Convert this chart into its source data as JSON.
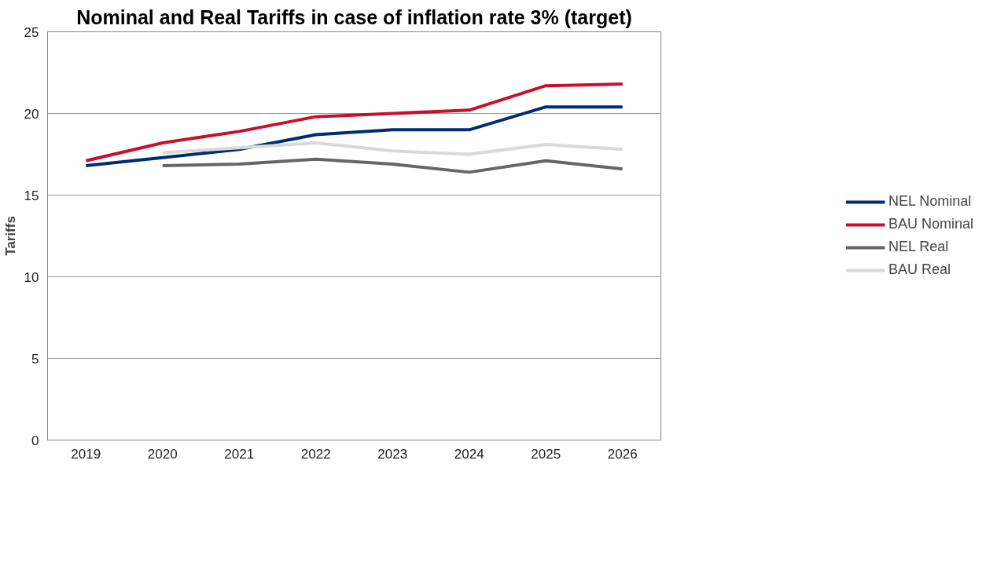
{
  "chart_data": {
    "type": "line",
    "title": "Nominal and Real Tariffs in case of inflation rate 3% (target)",
    "ylabel": "Tariffs",
    "categories": [
      "2019",
      "2020",
      "2021",
      "2022",
      "2023",
      "2024",
      "2025",
      "2026"
    ],
    "series": [
      {
        "name": "NEL Nominal",
        "color": "#002d72",
        "values": [
          16.8,
          17.3,
          17.8,
          18.7,
          19.0,
          19.0,
          20.4,
          20.4
        ]
      },
      {
        "name": "BAU Nominal",
        "color": "#c8102e",
        "values": [
          17.1,
          18.2,
          18.9,
          19.8,
          20.0,
          20.2,
          21.7,
          21.8
        ]
      },
      {
        "name": "NEL Real",
        "color": "#666666",
        "values": [
          null,
          16.8,
          16.9,
          17.2,
          16.9,
          16.4,
          17.1,
          16.6
        ]
      },
      {
        "name": "BAU Real",
        "color": "#d9d9d9",
        "values": [
          null,
          17.6,
          17.9,
          18.2,
          17.7,
          17.5,
          18.1,
          17.8
        ]
      }
    ],
    "ylim": [
      0,
      25
    ],
    "yticks": [
      0,
      5,
      10,
      15,
      20,
      25
    ],
    "grid": "y",
    "legend": "right",
    "marker": "none",
    "line_style": "solid"
  }
}
